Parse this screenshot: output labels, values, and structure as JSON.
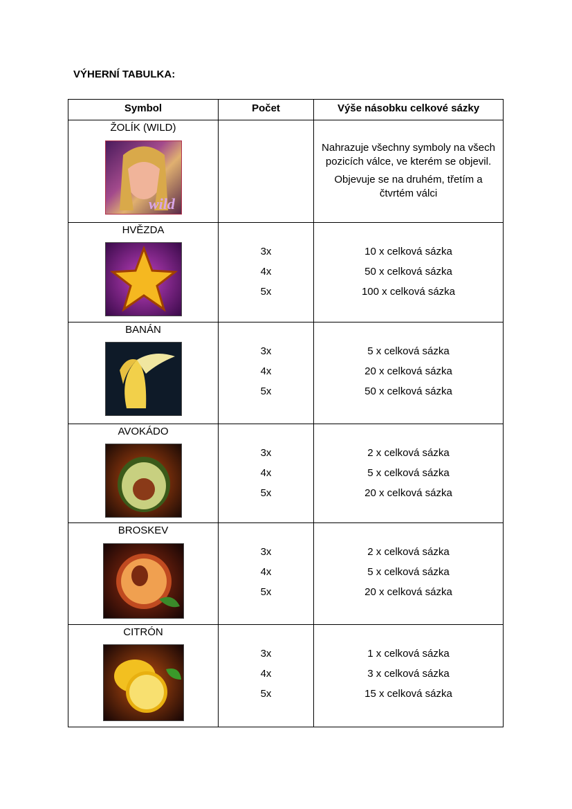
{
  "title": "VÝHERNÍ TABULKA:",
  "headers": {
    "symbol": "Symbol",
    "count": "Počet",
    "payout": "Výše násobku celkové sázky"
  },
  "wild": {
    "name": "ŽOLÍK (WILD)",
    "image_text": "wild",
    "desc1": "Nahrazuje všechny symboly na všech pozicích válce, ve kterém se objevil.",
    "desc2": "Objevuje se na druhém, třetím a čtvrtém válci"
  },
  "rows": [
    {
      "name": "HVĚZDA",
      "counts": [
        "3x",
        "4x",
        "5x"
      ],
      "payouts": [
        "10 x celková sázka",
        "50 x celková sázka",
        "100 x celková sázka"
      ]
    },
    {
      "name": "BANÁN",
      "counts": [
        "3x",
        "4x",
        "5x"
      ],
      "payouts": [
        "5 x celková sázka",
        "20 x celková sázka",
        "50 x celková sázka"
      ]
    },
    {
      "name": "AVOKÁDO",
      "counts": [
        "3x",
        "4x",
        "5x"
      ],
      "payouts": [
        "2 x celková sázka",
        "5 x celková sázka",
        "20 x celková sázka"
      ]
    },
    {
      "name": "BROSKEV",
      "counts": [
        "3x",
        "4x",
        "5x"
      ],
      "payouts": [
        "2 x celková sázka",
        "5 x celková sázka",
        "20 x celková sázka"
      ]
    },
    {
      "name": "CITRÓN",
      "counts": [
        "3x",
        "4x",
        "5x"
      ],
      "payouts": [
        "1 x celková sázka",
        "3 x celková sázka",
        "15 x celková sázka"
      ]
    }
  ]
}
